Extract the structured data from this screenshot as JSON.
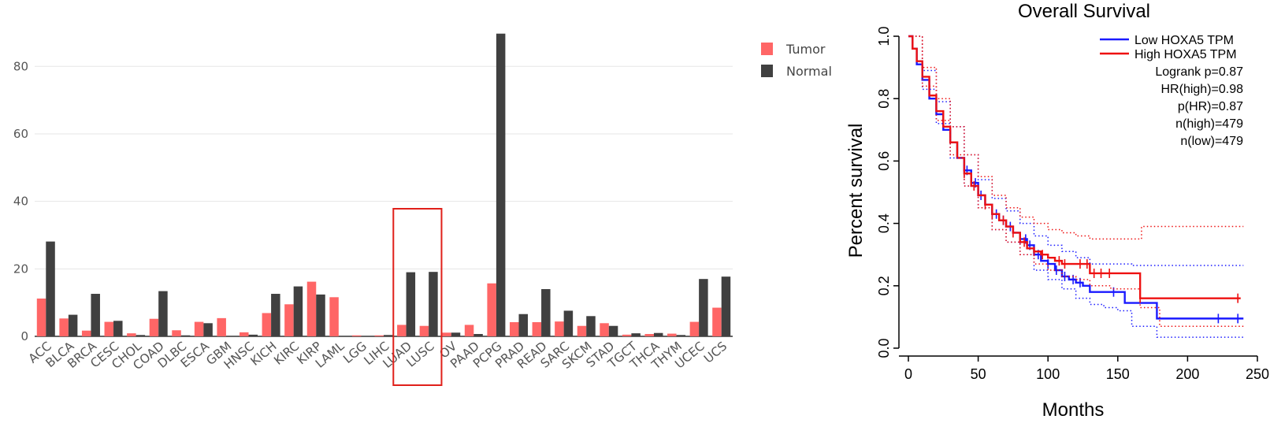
{
  "chart_data": [
    {
      "type": "bar",
      "categories": [
        "ACC",
        "BLCA",
        "BRCA",
        "CESC",
        "CHOL",
        "COAD",
        "DLBC",
        "ESCA",
        "GBM",
        "HNSC",
        "KICH",
        "KIRC",
        "KIRP",
        "LAML",
        "LGG",
        "LIHC",
        "LUAD",
        "LUSC",
        "OV",
        "PAAD",
        "PCPG",
        "PRAD",
        "READ",
        "SARC",
        "SKCM",
        "STAD",
        "TGCT",
        "THCA",
        "THYM",
        "UCEC",
        "UCS"
      ],
      "series": [
        {
          "name": "Tumor",
          "color": "#ff6666",
          "values": [
            11.2,
            5.3,
            1.7,
            4.3,
            0.9,
            5.2,
            1.8,
            4.3,
            5.4,
            1.2,
            6.9,
            9.5,
            16.2,
            11.6,
            0.3,
            0.3,
            3.4,
            3.1,
            1.1,
            3.4,
            15.7,
            4.2,
            4.2,
            4.4,
            3.1,
            3.9,
            0.5,
            0.7,
            0.8,
            4.3,
            8.5
          ]
        },
        {
          "name": "Normal",
          "color": "#404040",
          "values": [
            28.1,
            6.4,
            12.6,
            4.6,
            0.4,
            13.4,
            0.3,
            3.9,
            0,
            0.5,
            12.6,
            14.8,
            12.4,
            0,
            0.1,
            0.4,
            19.0,
            19.1,
            1.1,
            0.7,
            89.7,
            6.6,
            14.0,
            7.6,
            6.0,
            3.1,
            0.9,
            1.0,
            0.4,
            17.0,
            17.7
          ]
        }
      ],
      "yticks": [
        0,
        20,
        40,
        60,
        80
      ],
      "ylim": [
        0,
        95
      ],
      "grid": true,
      "legend_position": "top-right, outside plot",
      "annotation": "red rectangle highlighting LUAD and LUSC"
    },
    {
      "type": "line",
      "title": "Overall Survival",
      "xlabel": "Months",
      "ylabel": "Percent survival",
      "xticks": [
        0,
        50,
        100,
        150,
        200,
        250
      ],
      "yticks": [
        "0.0",
        "0.2",
        "0.4",
        "0.6",
        "0.8",
        "1.0"
      ],
      "xlim": [
        0,
        250
      ],
      "ylim": [
        0,
        1
      ],
      "legend_position": "top-right",
      "legend": [
        "Low HOXA5 TPM",
        "High HOXA5 TPM"
      ],
      "stats": [
        "Logrank p=0.87",
        "HR(high)=0.98",
        "p(HR)=0.87",
        "n(high)=479",
        "n(low)=479"
      ],
      "series": [
        {
          "name": "Low HOXA5 TPM",
          "color": "#1a1aff",
          "x": [
            0,
            3,
            6,
            10,
            15,
            20,
            25,
            30,
            35,
            40,
            45,
            50,
            55,
            60,
            65,
            70,
            75,
            80,
            85,
            90,
            95,
            100,
            105,
            110,
            115,
            120,
            125,
            130,
            140,
            150,
            155,
            165,
            178,
            240
          ],
          "y": [
            1.0,
            0.96,
            0.91,
            0.86,
            0.8,
            0.75,
            0.7,
            0.66,
            0.61,
            0.57,
            0.53,
            0.49,
            0.46,
            0.43,
            0.41,
            0.39,
            0.37,
            0.35,
            0.33,
            0.3,
            0.28,
            0.27,
            0.25,
            0.23,
            0.22,
            0.21,
            0.2,
            0.18,
            0.18,
            0.18,
            0.145,
            0.145,
            0.095,
            0.095
          ],
          "censor_x": [
            42,
            48,
            52,
            60,
            63,
            68,
            73,
            80,
            84,
            87,
            93,
            100,
            106,
            112,
            118,
            123,
            147,
            222,
            236
          ]
        },
        {
          "name": "High HOXA5 TPM",
          "color": "#ee1111",
          "x": [
            0,
            3,
            6,
            10,
            15,
            20,
            25,
            30,
            35,
            40,
            45,
            50,
            55,
            60,
            65,
            70,
            75,
            80,
            85,
            90,
            95,
            100,
            105,
            110,
            120,
            130,
            135,
            145,
            155,
            166,
            238
          ],
          "y": [
            1.0,
            0.96,
            0.92,
            0.87,
            0.81,
            0.76,
            0.71,
            0.66,
            0.61,
            0.56,
            0.52,
            0.49,
            0.46,
            0.43,
            0.41,
            0.39,
            0.37,
            0.34,
            0.32,
            0.31,
            0.3,
            0.29,
            0.28,
            0.27,
            0.27,
            0.24,
            0.24,
            0.24,
            0.24,
            0.16,
            0.16
          ],
          "censor_x": [
            40,
            47,
            55,
            60,
            68,
            75,
            83,
            90,
            96,
            108,
            112,
            123,
            128,
            133,
            138,
            144,
            166,
            236
          ]
        },
        {
          "name": "Low HOXA5 TPM 95% CI upper",
          "color": "#1a1aff",
          "style": "dotted",
          "x": [
            0,
            10,
            20,
            30,
            40,
            50,
            60,
            70,
            80,
            90,
            100,
            110,
            120,
            130,
            140,
            150,
            160,
            178,
            240
          ],
          "y": [
            1.0,
            0.89,
            0.79,
            0.71,
            0.62,
            0.54,
            0.48,
            0.44,
            0.4,
            0.36,
            0.33,
            0.31,
            0.29,
            0.27,
            0.27,
            0.27,
            0.265,
            0.265,
            0.265
          ]
        },
        {
          "name": "Low HOXA5 TPM 95% CI lower",
          "color": "#1a1aff",
          "style": "dotted",
          "x": [
            0,
            10,
            20,
            30,
            40,
            50,
            60,
            70,
            80,
            90,
            100,
            110,
            120,
            130,
            140,
            150,
            160,
            178,
            240
          ],
          "y": [
            1.0,
            0.83,
            0.72,
            0.61,
            0.52,
            0.45,
            0.38,
            0.34,
            0.3,
            0.25,
            0.22,
            0.19,
            0.16,
            0.14,
            0.13,
            0.12,
            0.07,
            0.035,
            0.035
          ]
        },
        {
          "name": "High HOXA5 TPM 95% CI upper",
          "color": "#ee1111",
          "style": "dotted",
          "x": [
            0,
            10,
            20,
            30,
            40,
            50,
            60,
            70,
            80,
            90,
            100,
            110,
            120,
            130,
            145,
            166,
            167,
            240
          ],
          "y": [
            1.0,
            0.9,
            0.8,
            0.71,
            0.62,
            0.55,
            0.49,
            0.45,
            0.42,
            0.4,
            0.38,
            0.37,
            0.36,
            0.35,
            0.35,
            0.35,
            0.39,
            0.39
          ]
        },
        {
          "name": "High HOXA5 TPM 95% CI lower",
          "color": "#ee1111",
          "style": "dotted",
          "x": [
            0,
            10,
            20,
            30,
            40,
            50,
            60,
            70,
            80,
            90,
            100,
            110,
            120,
            130,
            145,
            166,
            180,
            240
          ],
          "y": [
            1.0,
            0.84,
            0.73,
            0.62,
            0.52,
            0.45,
            0.38,
            0.34,
            0.3,
            0.27,
            0.25,
            0.23,
            0.22,
            0.2,
            0.19,
            0.13,
            0.07,
            0.07
          ]
        }
      ]
    }
  ]
}
